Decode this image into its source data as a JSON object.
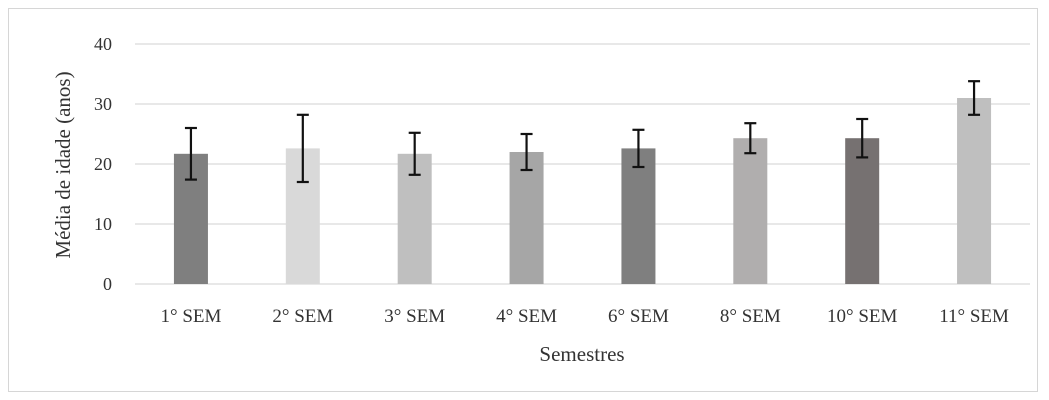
{
  "chart_data": {
    "type": "bar",
    "title": "",
    "xlabel": "Semestres",
    "ylabel": "Média de idade (anos)",
    "ylim": [
      0,
      40
    ],
    "yticks": [
      0,
      10,
      20,
      30,
      40
    ],
    "grid": true,
    "legend": "none",
    "categories": [
      "1° SEM",
      "2° SEM",
      "3° SEM",
      "4° SEM",
      "6° SEM",
      "8° SEM",
      "10° SEM",
      "11° SEM"
    ],
    "values": [
      21.7,
      22.6,
      21.7,
      22.0,
      22.6,
      24.3,
      24.3,
      31.0
    ],
    "error": [
      4.3,
      5.6,
      3.5,
      3.0,
      3.1,
      2.5,
      3.2,
      2.8
    ],
    "colors": [
      "#7f7f7f",
      "#d9d9d9",
      "#bfbfbf",
      "#a6a6a6",
      "#7f7f7f",
      "#b0aeae",
      "#767171",
      "#bfbfbf"
    ]
  }
}
